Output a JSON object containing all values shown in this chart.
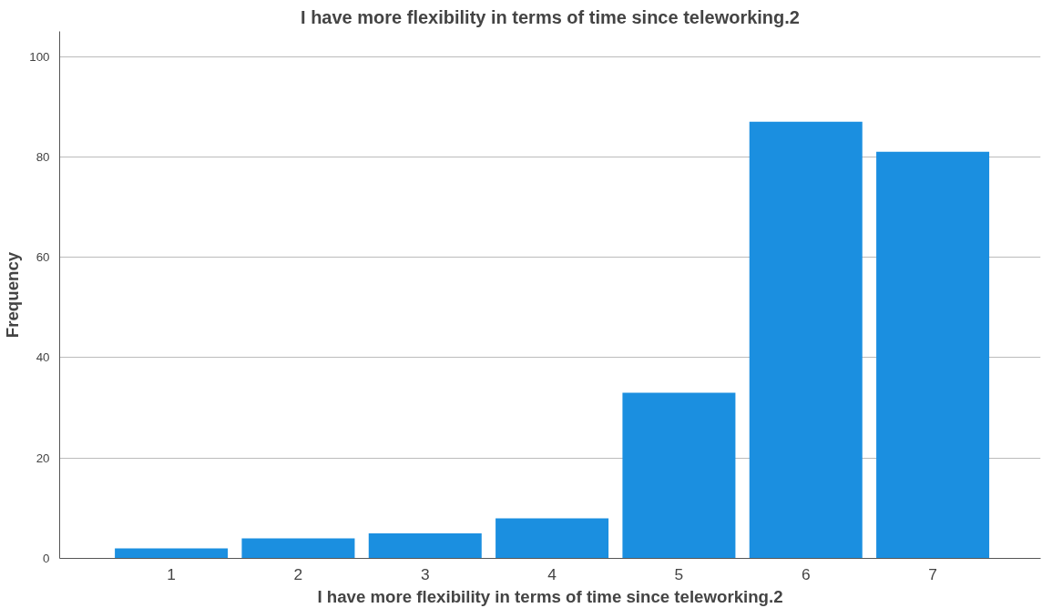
{
  "chart_data": {
    "type": "bar",
    "title": "I have more flexibility in terms of time since teleworking.2",
    "xlabel": "I have more flexibility in terms of time since teleworking.2",
    "ylabel": "Frequency",
    "categories": [
      "1",
      "2",
      "3",
      "4",
      "5",
      "6",
      "7"
    ],
    "series": [
      {
        "color": "#1b8fe0",
        "values": [
          2,
          4,
          5,
          8,
          33,
          87,
          81
        ]
      }
    ],
    "ylim": [
      0,
      105
    ],
    "yticks": [
      0,
      20,
      40,
      60,
      80,
      100
    ],
    "grid": "y"
  }
}
